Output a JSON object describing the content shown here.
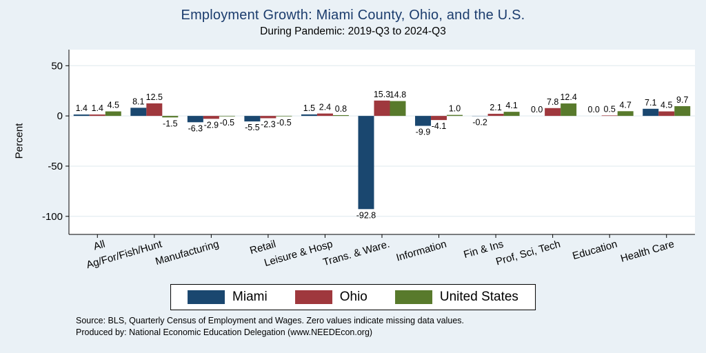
{
  "colors": {
    "page_bg": "#eaf1f6",
    "plot_bg": "#ffffff",
    "grid": "#dde8ee",
    "title": "#1b3c6d",
    "axis": "#000000"
  },
  "notes": [
    "Source: BLS, Quarterly Census of Employment and Wages. Zero values indicate missing data values.",
    "Produced by: National Economic Education Delegation (www.NEEDEcon.org)"
  ],
  "chart_data": {
    "type": "bar",
    "title": "Employment Growth: Miami County, Ohio, and the U.S.",
    "subtitle": "During Pandemic: 2019-Q3 to 2024-Q3",
    "ylabel": "Percent",
    "xlabel": "",
    "categories": [
      "All",
      "Ag/For/Fish/Hunt",
      "Manufacturing",
      "Retail",
      "Leisure & Hosp",
      "Trans. & Ware.",
      "Information",
      "Fin & Ins",
      "Prof, Sci, Tech",
      "Education",
      "Health Care"
    ],
    "series": [
      {
        "name": "Miami",
        "color": "#1a476f",
        "values": [
          1.4,
          8.1,
          -6.3,
          -5.5,
          1.5,
          -92.8,
          -9.9,
          -0.2,
          0.0,
          0.0,
          7.1
        ]
      },
      {
        "name": "Ohio",
        "color": "#9f383d",
        "values": [
          1.4,
          12.5,
          -2.9,
          -2.3,
          2.4,
          15.3,
          -4.1,
          2.1,
          7.8,
          0.5,
          4.5
        ]
      },
      {
        "name": "United States",
        "color": "#587a2c",
        "values": [
          4.5,
          -1.5,
          -0.5,
          -0.5,
          0.8,
          14.8,
          1.0,
          4.1,
          12.4,
          4.7,
          9.7
        ]
      }
    ],
    "yticks": [
      50,
      0,
      -50,
      -100
    ],
    "ylim": [
      -118,
      66
    ],
    "grid": true,
    "legend_position": "bottom"
  }
}
